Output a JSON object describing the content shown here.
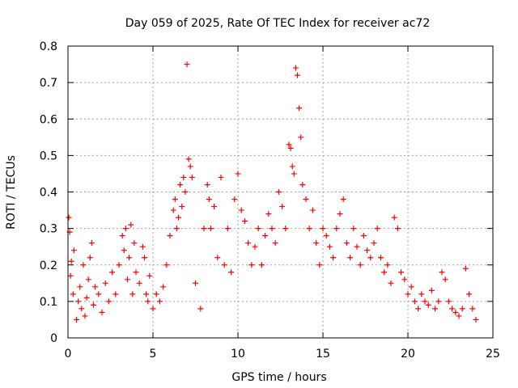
{
  "chart_data": {
    "type": "scatter",
    "title": "Day 059 of 2025, Rate Of TEC Index for receiver ac72",
    "xlabel": "GPS time / hours",
    "ylabel": "ROTI / TECUs",
    "xlim": [
      0,
      25
    ],
    "ylim": [
      0,
      0.8
    ],
    "xticks": [
      "0",
      "5",
      "10",
      "15",
      "20",
      "25"
    ],
    "yticks": [
      "0",
      "0.1",
      "0.2",
      "0.3",
      "0.4",
      "0.5",
      "0.6",
      "0.7",
      "0.8"
    ],
    "grid": true,
    "marker": "plus",
    "series_color": "#ff0000",
    "series": [
      {
        "x": [
          0.05,
          0.1,
          0.15,
          0.2,
          0.3,
          0.35,
          0.5,
          0.6,
          0.7,
          0.8,
          0.9,
          1.0,
          1.1,
          1.2,
          1.3,
          1.4,
          1.5,
          1.6,
          1.8,
          2.0,
          2.2,
          2.4,
          2.6,
          2.8,
          3.0,
          3.2,
          3.3,
          3.4,
          3.5,
          3.6,
          3.7,
          3.8,
          3.9,
          4.0,
          4.2,
          4.4,
          4.5,
          4.6,
          4.7,
          4.8,
          5.0,
          5.2,
          5.4,
          5.6,
          5.8,
          6.0,
          6.2,
          6.3,
          6.4,
          6.5,
          6.6,
          6.7,
          6.8,
          6.9,
          7.0,
          7.1,
          7.2,
          7.3,
          7.5,
          7.8,
          8.0,
          8.2,
          8.3,
          8.4,
          8.6,
          8.8,
          9.0,
          9.2,
          9.4,
          9.6,
          9.8,
          10.0,
          10.2,
          10.4,
          10.6,
          10.8,
          11.0,
          11.2,
          11.4,
          11.6,
          11.8,
          12.0,
          12.2,
          12.4,
          12.6,
          12.8,
          13.0,
          13.1,
          13.2,
          13.3,
          13.4,
          13.5,
          13.6,
          13.7,
          13.8,
          14.0,
          14.2,
          14.4,
          14.6,
          14.8,
          15.0,
          15.2,
          15.4,
          15.6,
          15.8,
          16.0,
          16.2,
          16.4,
          16.6,
          16.8,
          17.0,
          17.2,
          17.4,
          17.6,
          17.8,
          18.0,
          18.2,
          18.4,
          18.6,
          18.8,
          19.0,
          19.2,
          19.4,
          19.6,
          19.8,
          20.0,
          20.2,
          20.4,
          20.6,
          20.8,
          21.0,
          21.2,
          21.4,
          21.6,
          21.8,
          22.0,
          22.2,
          22.4,
          22.6,
          22.8,
          23.0,
          23.2,
          23.4,
          23.6,
          23.8,
          24.0
        ],
        "y": [
          0.33,
          0.29,
          0.17,
          0.21,
          0.12,
          0.24,
          0.05,
          0.1,
          0.14,
          0.08,
          0.2,
          0.06,
          0.11,
          0.16,
          0.22,
          0.26,
          0.09,
          0.14,
          0.12,
          0.07,
          0.15,
          0.1,
          0.18,
          0.12,
          0.2,
          0.28,
          0.24,
          0.3,
          0.16,
          0.22,
          0.31,
          0.12,
          0.26,
          0.18,
          0.15,
          0.25,
          0.22,
          0.12,
          0.1,
          0.17,
          0.08,
          0.12,
          0.1,
          0.14,
          0.2,
          0.28,
          0.35,
          0.38,
          0.3,
          0.33,
          0.42,
          0.36,
          0.44,
          0.4,
          0.75,
          0.49,
          0.47,
          0.44,
          0.15,
          0.08,
          0.3,
          0.42,
          0.38,
          0.3,
          0.36,
          0.22,
          0.44,
          0.2,
          0.3,
          0.18,
          0.38,
          0.45,
          0.35,
          0.32,
          0.26,
          0.2,
          0.25,
          0.3,
          0.2,
          0.28,
          0.34,
          0.3,
          0.26,
          0.4,
          0.36,
          0.3,
          0.53,
          0.52,
          0.47,
          0.45,
          0.74,
          0.72,
          0.63,
          0.55,
          0.42,
          0.38,
          0.3,
          0.35,
          0.26,
          0.2,
          0.3,
          0.28,
          0.25,
          0.22,
          0.3,
          0.34,
          0.38,
          0.26,
          0.22,
          0.3,
          0.25,
          0.2,
          0.28,
          0.24,
          0.22,
          0.26,
          0.3,
          0.22,
          0.18,
          0.2,
          0.15,
          0.33,
          0.3,
          0.18,
          0.16,
          0.12,
          0.14,
          0.1,
          0.08,
          0.12,
          0.1,
          0.09,
          0.13,
          0.08,
          0.1,
          0.18,
          0.16,
          0.1,
          0.08,
          0.07,
          0.06,
          0.08,
          0.19,
          0.12,
          0.08,
          0.05
        ]
      }
    ]
  }
}
